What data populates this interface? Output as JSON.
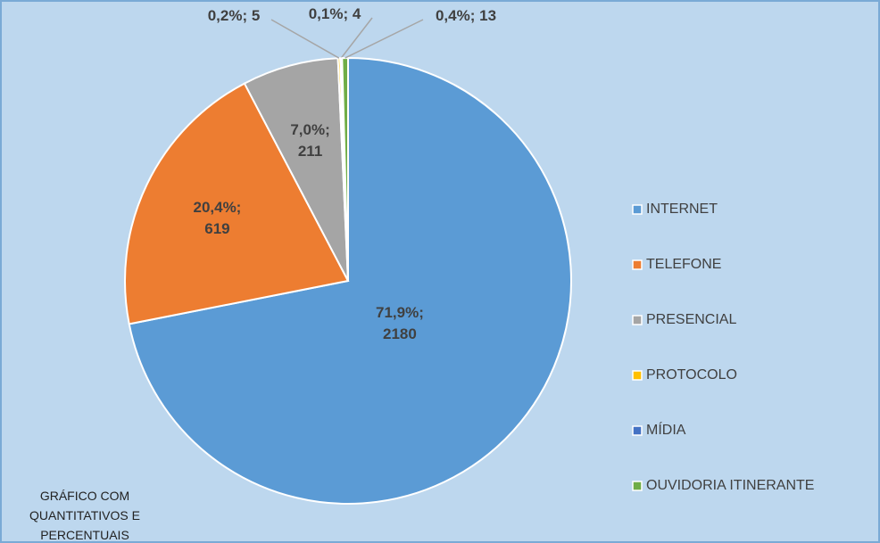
{
  "chart_data": {
    "type": "pie",
    "categories": [
      "INTERNET",
      "TELEFONE",
      "PRESENCIAL",
      "PROTOCOLO",
      "MÍDIA",
      "OUVIDORIA ITINERANTE"
    ],
    "values": [
      2180,
      619,
      211,
      5,
      4,
      13
    ],
    "value_labels": [
      "71,9%; 2180",
      "20,4%; 619",
      "7,0%; 211",
      "0,2%; 5",
      "0,1%; 4",
      "0,4%; 13"
    ],
    "colors": [
      "#5b9bd5",
      "#ed7d31",
      "#a5a5a5",
      "#ffc000",
      "#4472c4",
      "#70ad47"
    ],
    "annotation": "GRÁFICO COM QUANTITATIVOS E PERCENTUAIS",
    "legend": "right"
  }
}
